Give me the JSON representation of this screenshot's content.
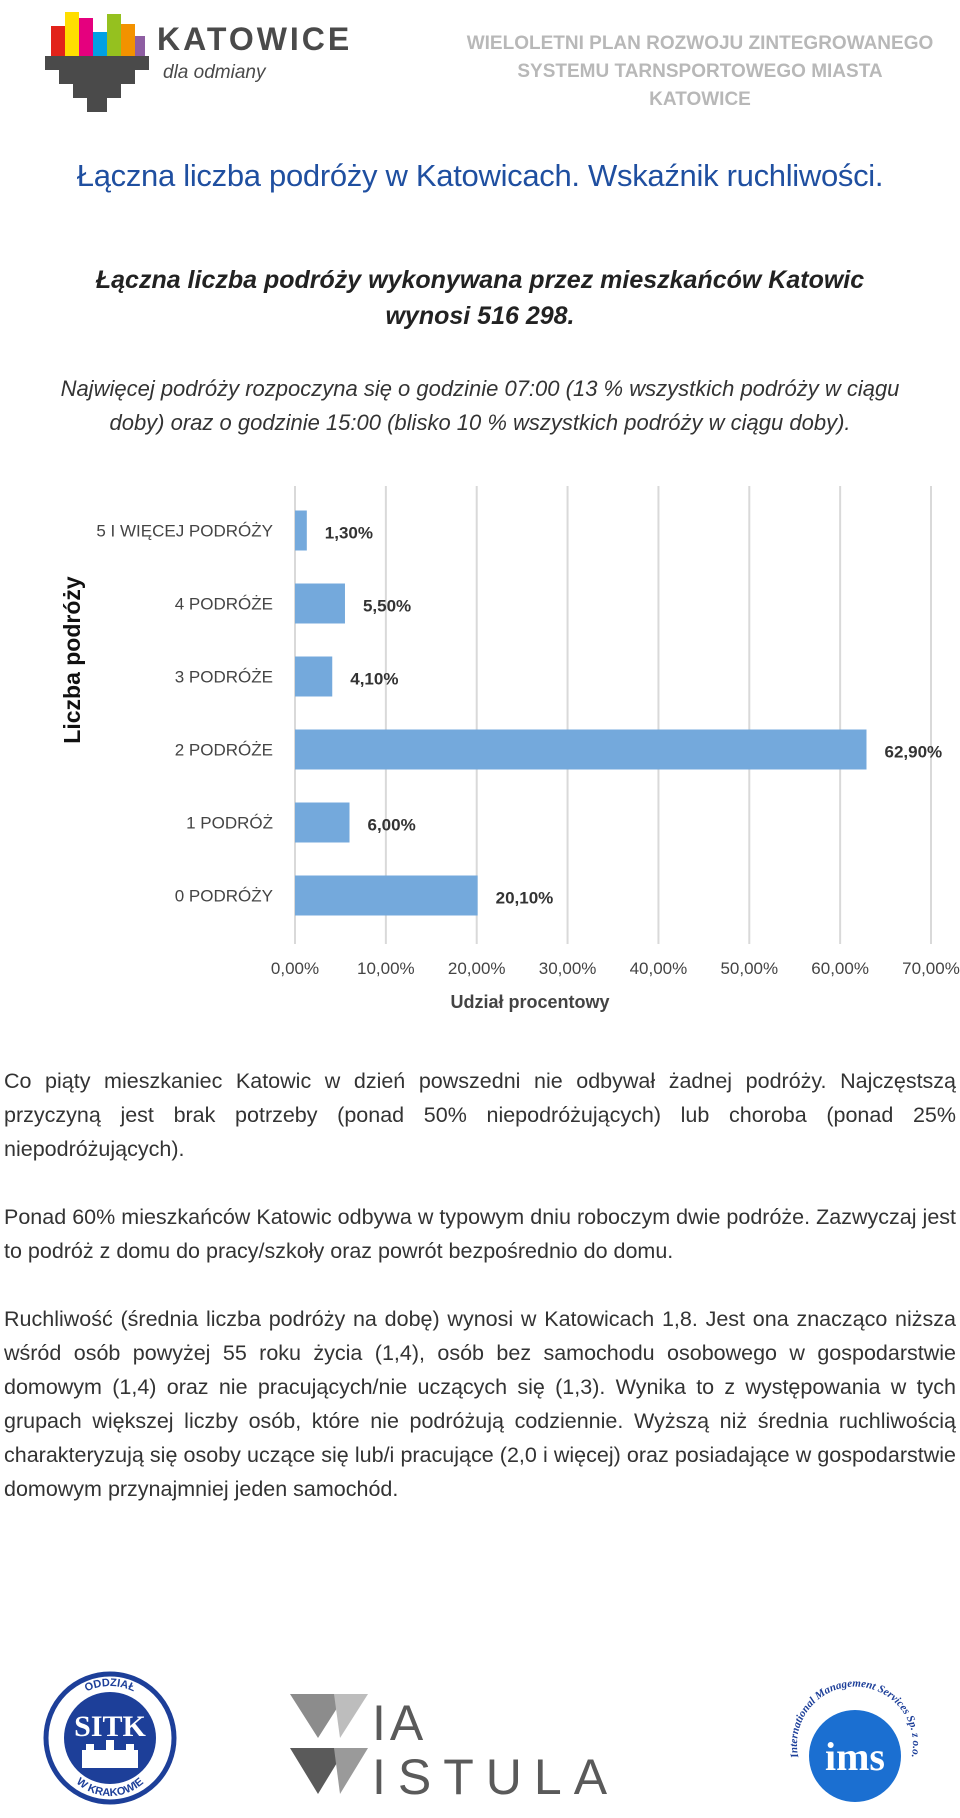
{
  "header": {
    "brand_name": "KATOWICE",
    "brand_tagline": "dla odmiany",
    "doc_title_lines": [
      "WIELOLETNI PLAN ROZWOJU ZINTEGROWANEGO",
      "SYSTEMU TARNSPORTOWEGO MIASTA",
      "KATOWICE"
    ]
  },
  "page_title": "Łączna liczba podróży w Katowicach. Wskaźnik ruchliwości.",
  "subtitle_lines": [
    "Łączna liczba podróży wykonywana przez mieszkańców Katowic",
    "wynosi 516 298."
  ],
  "intro_lines": [
    "Najwięcej podróży rozpoczyna się o godzinie 07:00 (13 % wszystkich podróży w ciągu",
    "doby) oraz o godzinie 15:00 (blisko 10 % wszystkich podróży w ciągu doby)."
  ],
  "chart_data": {
    "type": "bar",
    "orientation": "horizontal",
    "categories": [
      "5 I WIĘCEJ PODRÓŻY",
      "4 PODRÓŻE",
      "3 PODRÓŻE",
      "2 PODRÓŻE",
      "1 PODRÓŻ",
      "0 PODRÓŻY"
    ],
    "values": [
      1.3,
      5.5,
      4.1,
      62.9,
      6.0,
      20.1
    ],
    "data_labels": [
      "1,30%",
      "5,50%",
      "4,10%",
      "62,90%",
      "6,00%",
      "20,10%"
    ],
    "xlabel": "Udział procentowy",
    "ylabel": "Liczba podróży",
    "xlim": [
      0,
      70
    ],
    "x_ticks": [
      "0,00%",
      "10,00%",
      "20,00%",
      "30,00%",
      "40,00%",
      "50,00%",
      "60,00%",
      "70,00%"
    ],
    "grid": "vertical",
    "bar_color": "#74a9dc"
  },
  "paragraphs": [
    "Co piąty mieszkaniec Katowic w dzień powszedni nie odbywał żadnej podróży. Najczęstszą przyczyną jest brak potrzeby (ponad 50% niepodróżujących) lub choroba (ponad 25% niepodróżujących).",
    "Ponad 60% mieszkańców Katowic odbywa w typowym dniu roboczym dwie podróże. Zazwyczaj jest to podróż z domu do pracy/szkoły oraz powrót bezpośrednio do domu.",
    "Ruchliwość (średnia liczba podróży na dobę) wynosi w Katowicach 1,8. Jest ona znacząco niższa wśród osób powyżej 55 roku życia (1,4), osób bez samochodu osobowego w gospodarstwie domowym (1,4) oraz nie pracujących/nie uczących się (1,3). Wynika to z występowania w tych grupach większej liczby osób, które nie podróżują codziennie. Wyższą niż średnia ruchliwością charakteryzują się osoby uczące się lub/i pracujące (2,0 i więcej) oraz posiadające w gospodarstwie domowym przynajmniej jeden samochód."
  ],
  "footer": {
    "sitk_logo_text": [
      "ODDZIAŁ",
      "SITK",
      "W KRAKOWIE"
    ],
    "via_logo_text": [
      "IA",
      "ISTULA"
    ],
    "ims_logo_text": [
      "ims",
      "International Management Services Sp. z o.o."
    ]
  }
}
